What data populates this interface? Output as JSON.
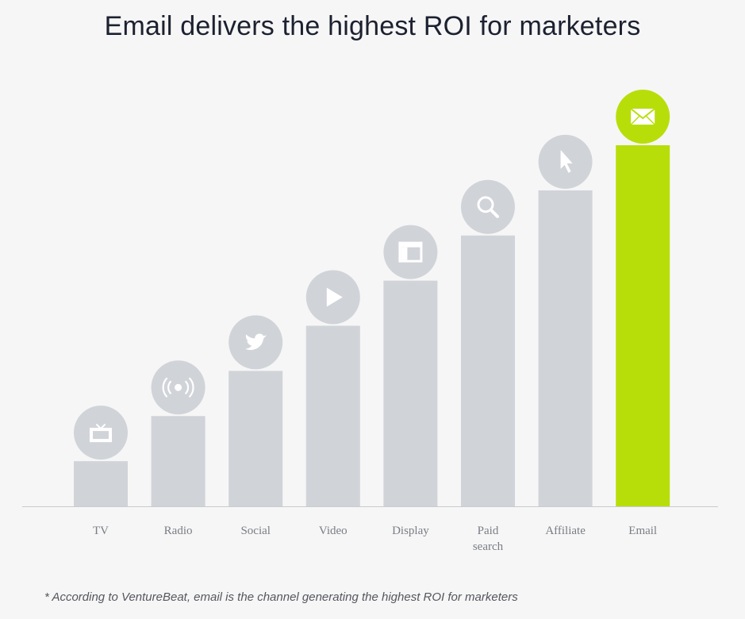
{
  "title": "Email delivers the highest ROI for marketers",
  "footnote": "* According to VentureBeat, email is the channel generating the highest ROI for marketers",
  "colors": {
    "bar": "#d0d3d8",
    "highlight": "#b8de0a",
    "icon_circle": "#d0d3d8",
    "icon_glyph": "#ffffff",
    "baseline": "#c9cbd0",
    "label": "#7a7d85"
  },
  "chart_data": {
    "type": "bar",
    "title": "Email delivers the highest ROI for marketers",
    "categories": [
      "TV",
      "Radio",
      "Social",
      "Video",
      "Display",
      "Paid search",
      "Affiliate",
      "Email"
    ],
    "tick_labels": [
      [
        "TV"
      ],
      [
        "Radio"
      ],
      [
        "Social"
      ],
      [
        "Video"
      ],
      [
        "Display"
      ],
      [
        "Paid",
        "search"
      ],
      [
        "Affiliate"
      ],
      [
        "Email"
      ]
    ],
    "values": [
      1,
      2,
      3,
      4,
      5,
      6,
      7,
      8
    ],
    "icons": [
      "tv-icon",
      "radio-icon",
      "twitter-icon",
      "play-icon",
      "display-icon",
      "search-icon",
      "cursor-icon",
      "envelope-icon"
    ],
    "highlight": "Email",
    "ylim": [
      0,
      8
    ],
    "grid": false,
    "legend": "none"
  }
}
